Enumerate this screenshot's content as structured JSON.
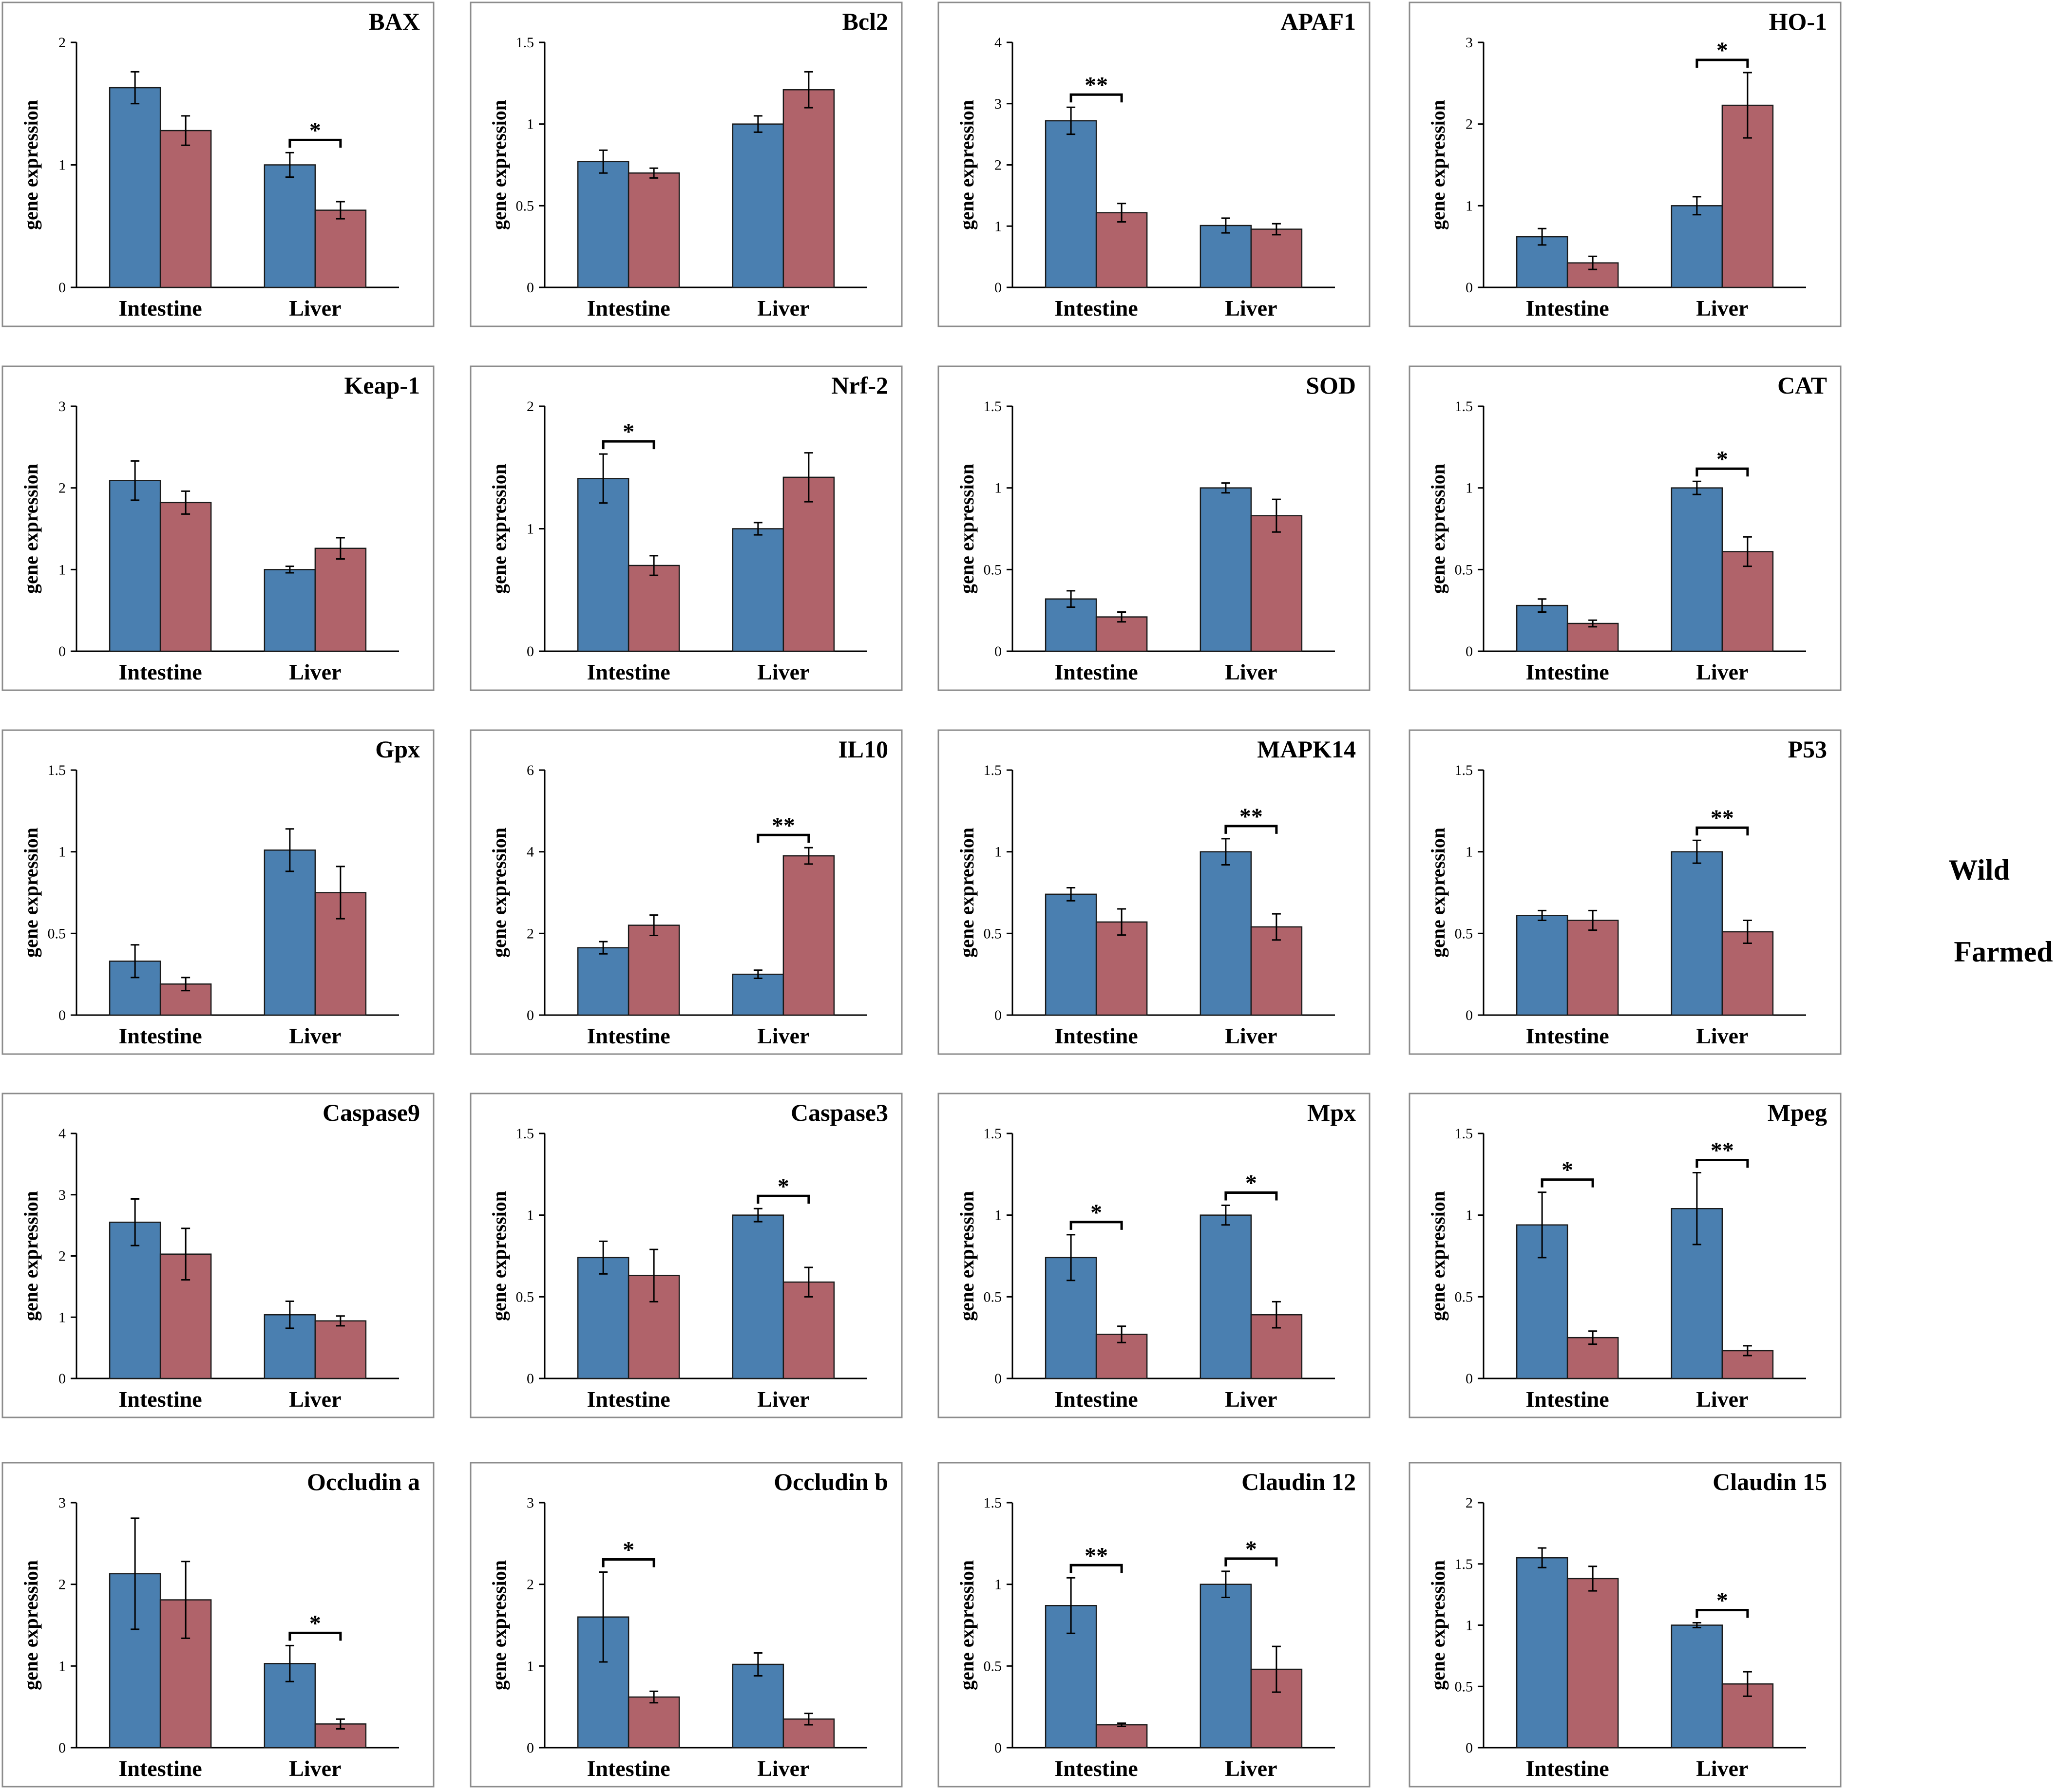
{
  "legend": {
    "entries": [
      {
        "label": "Wild",
        "color": "#4a7fb0"
      },
      {
        "label": "Farmed",
        "color": "#b0636a"
      }
    ]
  },
  "chart_data": [
    {
      "type": "bar",
      "title": "BAX",
      "ylabel": "gene expression",
      "categories": [
        "Intestine",
        "Liver"
      ],
      "ylim": [
        0,
        2
      ],
      "yticks": [
        "0",
        "1",
        "2"
      ],
      "series": [
        {
          "name": "Wild",
          "values": [
            1.63,
            1.0
          ],
          "errors": [
            0.13,
            0.1
          ]
        },
        {
          "name": "Farmed",
          "values": [
            1.28,
            0.63
          ],
          "errors": [
            0.12,
            0.07
          ]
        }
      ],
      "annotations": [
        {
          "category_index": 1,
          "text": "*"
        }
      ]
    },
    {
      "type": "bar",
      "title": "Bcl2",
      "ylabel": "gene expression",
      "categories": [
        "Intestine",
        "Liver"
      ],
      "ylim": [
        0,
        1.5
      ],
      "yticks": [
        "0",
        "0.5",
        "1",
        "1.5"
      ],
      "series": [
        {
          "name": "Wild",
          "values": [
            0.77,
            1.0
          ],
          "errors": [
            0.07,
            0.05
          ]
        },
        {
          "name": "Farmed",
          "values": [
            0.7,
            1.21
          ],
          "errors": [
            0.03,
            0.11
          ]
        }
      ],
      "annotations": []
    },
    {
      "type": "bar",
      "title": "APAF1",
      "ylabel": "gene expression",
      "categories": [
        "Intestine",
        "Liver"
      ],
      "ylim": [
        0,
        4
      ],
      "yticks": [
        "0",
        "1",
        "2",
        "3",
        "4"
      ],
      "series": [
        {
          "name": "Wild",
          "values": [
            2.72,
            1.01
          ],
          "errors": [
            0.22,
            0.12
          ]
        },
        {
          "name": "Farmed",
          "values": [
            1.22,
            0.95
          ],
          "errors": [
            0.15,
            0.09
          ]
        }
      ],
      "annotations": [
        {
          "category_index": 0,
          "text": "**"
        }
      ]
    },
    {
      "type": "bar",
      "title": "HO-1",
      "ylabel": "gene expression",
      "categories": [
        "Intestine",
        "Liver"
      ],
      "ylim": [
        0,
        3
      ],
      "yticks": [
        "0",
        "1",
        "2",
        "3"
      ],
      "series": [
        {
          "name": "Wild",
          "values": [
            0.62,
            1.0
          ],
          "errors": [
            0.1,
            0.11
          ]
        },
        {
          "name": "Farmed",
          "values": [
            0.3,
            2.23
          ],
          "errors": [
            0.08,
            0.4
          ]
        }
      ],
      "annotations": [
        {
          "category_index": 1,
          "text": "*"
        }
      ]
    },
    {
      "type": "bar",
      "title": "Keap-1",
      "ylabel": "gene expression",
      "categories": [
        "Intestine",
        "Liver"
      ],
      "ylim": [
        0,
        3
      ],
      "yticks": [
        "0",
        "1",
        "2",
        "3"
      ],
      "series": [
        {
          "name": "Wild",
          "values": [
            2.09,
            1.0
          ],
          "errors": [
            0.24,
            0.04
          ]
        },
        {
          "name": "Farmed",
          "values": [
            1.82,
            1.26
          ],
          "errors": [
            0.14,
            0.13
          ]
        }
      ],
      "annotations": []
    },
    {
      "type": "bar",
      "title": "Nrf-2",
      "ylabel": "gene expression",
      "categories": [
        "Intestine",
        "Liver"
      ],
      "ylim": [
        0,
        2
      ],
      "yticks": [
        "0",
        "1",
        "2"
      ],
      "series": [
        {
          "name": "Wild",
          "values": [
            1.41,
            1.0
          ],
          "errors": [
            0.2,
            0.05
          ]
        },
        {
          "name": "Farmed",
          "values": [
            0.7,
            1.42
          ],
          "errors": [
            0.08,
            0.2
          ]
        }
      ],
      "annotations": [
        {
          "category_index": 0,
          "text": "*"
        }
      ]
    },
    {
      "type": "bar",
      "title": "SOD",
      "ylabel": "gene expression",
      "categories": [
        "Intestine",
        "Liver"
      ],
      "ylim": [
        0,
        1.5
      ],
      "yticks": [
        "0",
        "0.5",
        "1",
        "1.5"
      ],
      "series": [
        {
          "name": "Wild",
          "values": [
            0.32,
            1.0
          ],
          "errors": [
            0.05,
            0.03
          ]
        },
        {
          "name": "Farmed",
          "values": [
            0.21,
            0.83
          ],
          "errors": [
            0.03,
            0.1
          ]
        }
      ],
      "annotations": []
    },
    {
      "type": "bar",
      "title": "CAT",
      "ylabel": "gene expression",
      "categories": [
        "Intestine",
        "Liver"
      ],
      "ylim": [
        0,
        1.5
      ],
      "yticks": [
        "0",
        "0.5",
        "1",
        "1.5"
      ],
      "series": [
        {
          "name": "Wild",
          "values": [
            0.28,
            1.0
          ],
          "errors": [
            0.04,
            0.04
          ]
        },
        {
          "name": "Farmed",
          "values": [
            0.17,
            0.61
          ],
          "errors": [
            0.02,
            0.09
          ]
        }
      ],
      "annotations": [
        {
          "category_index": 1,
          "text": "*"
        }
      ]
    },
    {
      "type": "bar",
      "title": "Gpx",
      "ylabel": "gene expression",
      "categories": [
        "Intestine",
        "Liver"
      ],
      "ylim": [
        0,
        1.5
      ],
      "yticks": [
        "0",
        "0.5",
        "1",
        "1.5"
      ],
      "series": [
        {
          "name": "Wild",
          "values": [
            0.33,
            1.01
          ],
          "errors": [
            0.1,
            0.13
          ]
        },
        {
          "name": "Farmed",
          "values": [
            0.19,
            0.75
          ],
          "errors": [
            0.04,
            0.16
          ]
        }
      ],
      "annotations": []
    },
    {
      "type": "bar",
      "title": "IL10",
      "ylabel": "gene expression",
      "categories": [
        "Intestine",
        "Liver"
      ],
      "ylim": [
        0,
        6
      ],
      "yticks": [
        "0",
        "2",
        "4",
        "6"
      ],
      "series": [
        {
          "name": "Wild",
          "values": [
            1.65,
            1.0
          ],
          "errors": [
            0.15,
            0.1
          ]
        },
        {
          "name": "Farmed",
          "values": [
            2.2,
            3.9
          ],
          "errors": [
            0.25,
            0.2
          ]
        }
      ],
      "annotations": [
        {
          "category_index": 1,
          "text": "**"
        }
      ]
    },
    {
      "type": "bar",
      "title": "MAPK14",
      "ylabel": "gene expression",
      "categories": [
        "Intestine",
        "Liver"
      ],
      "ylim": [
        0,
        1.5
      ],
      "yticks": [
        "0",
        "0.5",
        "1",
        "1.5"
      ],
      "series": [
        {
          "name": "Wild",
          "values": [
            0.74,
            1.0
          ],
          "errors": [
            0.04,
            0.08
          ]
        },
        {
          "name": "Farmed",
          "values": [
            0.57,
            0.54
          ],
          "errors": [
            0.08,
            0.08
          ]
        }
      ],
      "annotations": [
        {
          "category_index": 1,
          "text": "**"
        }
      ]
    },
    {
      "type": "bar",
      "title": "P53",
      "ylabel": "gene expression",
      "categories": [
        "Intestine",
        "Liver"
      ],
      "ylim": [
        0,
        1.5
      ],
      "yticks": [
        "0",
        "0.5",
        "1",
        "1.5"
      ],
      "series": [
        {
          "name": "Wild",
          "values": [
            0.61,
            1.0
          ],
          "errors": [
            0.03,
            0.07
          ]
        },
        {
          "name": "Farmed",
          "values": [
            0.58,
            0.51
          ],
          "errors": [
            0.06,
            0.07
          ]
        }
      ],
      "annotations": [
        {
          "category_index": 1,
          "text": "**"
        }
      ]
    },
    {
      "type": "bar",
      "title": "Caspase9",
      "ylabel": "gene expression",
      "categories": [
        "Intestine",
        "Liver"
      ],
      "ylim": [
        0,
        4
      ],
      "yticks": [
        "0",
        "1",
        "2",
        "3",
        "4"
      ],
      "series": [
        {
          "name": "Wild",
          "values": [
            2.55,
            1.04
          ],
          "errors": [
            0.38,
            0.22
          ]
        },
        {
          "name": "Farmed",
          "values": [
            2.03,
            0.94
          ],
          "errors": [
            0.42,
            0.08
          ]
        }
      ],
      "annotations": []
    },
    {
      "type": "bar",
      "title": "Caspase3",
      "ylabel": "gene expression",
      "categories": [
        "Intestine",
        "Liver"
      ],
      "ylim": [
        0,
        1.5
      ],
      "yticks": [
        "0",
        "0.5",
        "1",
        "1.5"
      ],
      "series": [
        {
          "name": "Wild",
          "values": [
            0.74,
            1.0
          ],
          "errors": [
            0.1,
            0.04
          ]
        },
        {
          "name": "Farmed",
          "values": [
            0.63,
            0.59
          ],
          "errors": [
            0.16,
            0.09
          ]
        }
      ],
      "annotations": [
        {
          "category_index": 1,
          "text": "*"
        }
      ]
    },
    {
      "type": "bar",
      "title": "Mpx",
      "ylabel": "gene expression",
      "categories": [
        "Intestine",
        "Liver"
      ],
      "ylim": [
        0,
        1.5
      ],
      "yticks": [
        "0",
        "0.5",
        "1",
        "1.5"
      ],
      "series": [
        {
          "name": "Wild",
          "values": [
            0.74,
            1.0
          ],
          "errors": [
            0.14,
            0.06
          ]
        },
        {
          "name": "Farmed",
          "values": [
            0.27,
            0.39
          ],
          "errors": [
            0.05,
            0.08
          ]
        }
      ],
      "annotations": [
        {
          "category_index": 0,
          "text": "*"
        },
        {
          "category_index": 1,
          "text": "*"
        }
      ]
    },
    {
      "type": "bar",
      "title": "Mpeg",
      "ylabel": "gene expression",
      "categories": [
        "Intestine",
        "Liver"
      ],
      "ylim": [
        0,
        1.5
      ],
      "yticks": [
        "0",
        "0.5",
        "1",
        "1.5"
      ],
      "series": [
        {
          "name": "Wild",
          "values": [
            0.94,
            1.04
          ],
          "errors": [
            0.2,
            0.22
          ]
        },
        {
          "name": "Farmed",
          "values": [
            0.25,
            0.17
          ],
          "errors": [
            0.04,
            0.03
          ]
        }
      ],
      "annotations": [
        {
          "category_index": 0,
          "text": "*"
        },
        {
          "category_index": 1,
          "text": "**"
        }
      ]
    },
    {
      "type": "bar",
      "title": "Occludin a",
      "ylabel": "gene expression",
      "categories": [
        "Intestine",
        "Liver"
      ],
      "ylim": [
        0,
        3
      ],
      "yticks": [
        "0",
        "1",
        "2",
        "3"
      ],
      "series": [
        {
          "name": "Wild",
          "values": [
            2.13,
            1.03
          ],
          "errors": [
            0.68,
            0.22
          ]
        },
        {
          "name": "Farmed",
          "values": [
            1.81,
            0.29
          ],
          "errors": [
            0.47,
            0.06
          ]
        }
      ],
      "annotations": [
        {
          "category_index": 1,
          "text": "*"
        }
      ]
    },
    {
      "type": "bar",
      "title": "Occludin b",
      "ylabel": "gene expression",
      "categories": [
        "Intestine",
        "Liver"
      ],
      "ylim": [
        0,
        3
      ],
      "yticks": [
        "0",
        "1",
        "2",
        "3"
      ],
      "series": [
        {
          "name": "Wild",
          "values": [
            1.6,
            1.02
          ],
          "errors": [
            0.55,
            0.14
          ]
        },
        {
          "name": "Farmed",
          "values": [
            0.62,
            0.35
          ],
          "errors": [
            0.07,
            0.07
          ]
        }
      ],
      "annotations": [
        {
          "category_index": 0,
          "text": "*"
        }
      ]
    },
    {
      "type": "bar",
      "title": "Claudin 12",
      "ylabel": "gene expression",
      "categories": [
        "Intestine",
        "Liver"
      ],
      "ylim": [
        0,
        1.5
      ],
      "yticks": [
        "0",
        "0.5",
        "1",
        "1.5"
      ],
      "series": [
        {
          "name": "Wild",
          "values": [
            0.87,
            1.0
          ],
          "errors": [
            0.17,
            0.08
          ]
        },
        {
          "name": "Farmed",
          "values": [
            0.14,
            0.48
          ],
          "errors": [
            0.01,
            0.14
          ]
        }
      ],
      "annotations": [
        {
          "category_index": 0,
          "text": "**"
        },
        {
          "category_index": 1,
          "text": "*"
        }
      ]
    },
    {
      "type": "bar",
      "title": "Claudin 15",
      "ylabel": "gene expression",
      "categories": [
        "Intestine",
        "Liver"
      ],
      "ylim": [
        0,
        2
      ],
      "yticks": [
        "0",
        "0.5",
        "1",
        "1.5",
        "2"
      ],
      "series": [
        {
          "name": "Wild",
          "values": [
            1.55,
            1.0
          ],
          "errors": [
            0.08,
            0.02
          ]
        },
        {
          "name": "Farmed",
          "values": [
            1.38,
            0.52
          ],
          "errors": [
            0.1,
            0.1
          ]
        }
      ],
      "annotations": [
        {
          "category_index": 1,
          "text": "*"
        }
      ]
    }
  ]
}
